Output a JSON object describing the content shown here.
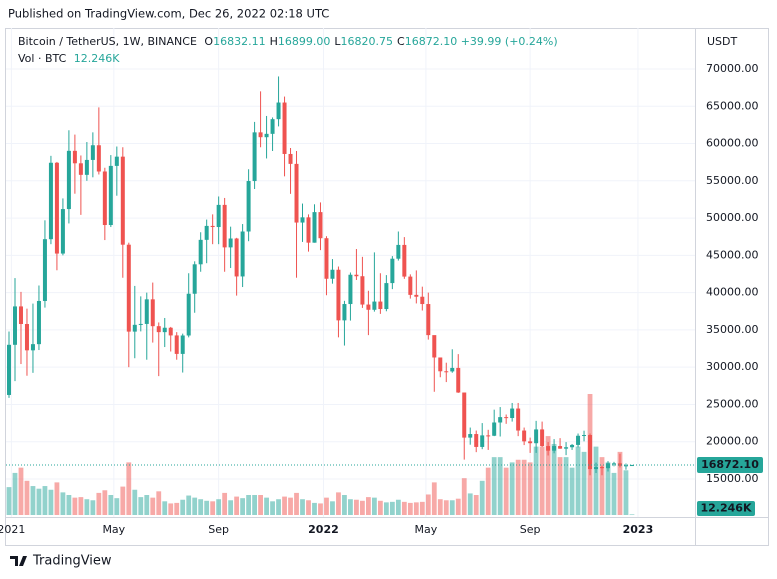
{
  "header": {
    "published": "Published on TradingView.com, Dec 26, 2022 02:18 UTC",
    "brand": "TradingView"
  },
  "chart_data": {
    "type": "candlestick",
    "symbol": "Bitcoin / TetherUS, 1W, BINANCE",
    "ohlc_legend": [
      {
        "name": "O",
        "value": 16832.11,
        "label": "16832.11"
      },
      {
        "name": "H",
        "value": 16899.0,
        "label": "16899.00"
      },
      {
        "name": "L",
        "value": 16820.75,
        "label": "16820.75"
      },
      {
        "name": "C",
        "value": 16872.1,
        "label": "16872.10"
      }
    ],
    "change": {
      "value": 39.99,
      "label": "+39.99"
    },
    "change_pct": {
      "value": 0.24,
      "label": "(+0.24%)"
    },
    "volume_title": "Vol · BTC",
    "y_unit": "USDT",
    "last_price": {
      "value": 16872.1,
      "label": "16872.10"
    },
    "last_volume": {
      "value": 12.246,
      "label": "12.246K"
    },
    "up_color": "#26a69a",
    "down_color": "#ef5350",
    "grid": true,
    "ylim": [
      10170,
      75230
    ],
    "yticks": [
      {
        "value": 15000,
        "label": "15000.00"
      },
      {
        "value": 20000,
        "label": "20000.00"
      },
      {
        "value": 25000,
        "label": "25000.00"
      },
      {
        "value": 30000,
        "label": "30000.00"
      },
      {
        "value": 35000,
        "label": "35000.00"
      },
      {
        "value": 40000,
        "label": "40000.00"
      },
      {
        "value": 45000,
        "label": "45000.00"
      },
      {
        "value": 50000,
        "label": "50000.00"
      },
      {
        "value": 55000,
        "label": "55000.00"
      },
      {
        "value": 60000,
        "label": "60000.00"
      },
      {
        "value": 65000,
        "label": "65000.00"
      },
      {
        "value": 70000,
        "label": "70000.00"
      }
    ],
    "xticks": [
      "2021",
      "May",
      "Sep",
      "2022",
      "May",
      "Sep",
      "2023"
    ],
    "candles": [
      [
        26272,
        34778,
        25880,
        33000,
        530
      ],
      [
        33000,
        41950,
        28130,
        38150,
        800
      ],
      [
        38150,
        40100,
        30420,
        35790,
        900
      ],
      [
        35790,
        37850,
        28850,
        32260,
        650
      ],
      [
        32260,
        38530,
        29240,
        33090,
        550
      ],
      [
        33090,
        40955,
        32300,
        38880,
        500
      ],
      [
        38880,
        49700,
        37990,
        47170,
        550
      ],
      [
        47170,
        58350,
        46500,
        57420,
        480
      ],
      [
        57420,
        57530,
        43000,
        45240,
        620
      ],
      [
        45240,
        52640,
        45000,
        51210,
        430
      ],
      [
        51210,
        61780,
        49280,
        59020,
        380
      ],
      [
        59020,
        61200,
        53270,
        57350,
        330
      ],
      [
        57350,
        58400,
        50430,
        55800,
        340
      ],
      [
        55800,
        60200,
        55000,
        57800,
        300
      ],
      [
        57800,
        61500,
        55470,
        59770,
        280
      ],
      [
        59770,
        64850,
        55850,
        56250,
        420
      ],
      [
        56250,
        56750,
        47050,
        49070,
        470
      ],
      [
        49070,
        58450,
        48800,
        57000,
        380
      ],
      [
        57000,
        59600,
        53000,
        58240,
        320
      ],
      [
        58240,
        59500,
        42000,
        46430,
        540
      ],
      [
        46430,
        46700,
        30000,
        34770,
        1000
      ],
      [
        34770,
        40900,
        31200,
        35680,
        480
      ],
      [
        35680,
        39500,
        34800,
        35800,
        340
      ],
      [
        35800,
        40000,
        31000,
        39100,
        380
      ],
      [
        39100,
        41350,
        33300,
        35500,
        330
      ],
      [
        35500,
        36000,
        28800,
        34700,
        450
      ],
      [
        34700,
        36600,
        32700,
        35290,
        260
      ],
      [
        35290,
        35400,
        32100,
        34260,
        220
      ],
      [
        34260,
        34700,
        31000,
        31780,
        230
      ],
      [
        31780,
        34500,
        29280,
        34250,
        290
      ],
      [
        34250,
        42600,
        34000,
        39850,
        370
      ],
      [
        39850,
        44200,
        37300,
        43800,
        330
      ],
      [
        43800,
        48100,
        42800,
        47080,
        300
      ],
      [
        47080,
        49800,
        43950,
        48950,
        270
      ],
      [
        48950,
        50500,
        46500,
        48800,
        260
      ],
      [
        48800,
        52900,
        46500,
        51770,
        300
      ],
      [
        51770,
        52700,
        42800,
        46070,
        420
      ],
      [
        46070,
        48850,
        43300,
        47260,
        280
      ],
      [
        47260,
        47350,
        39600,
        42170,
        350
      ],
      [
        42170,
        49200,
        40750,
        48200,
        320
      ],
      [
        48200,
        56550,
        46900,
        54970,
        380
      ],
      [
        54970,
        62900,
        53900,
        61500,
        380
      ],
      [
        61500,
        67000,
        59500,
        60850,
        380
      ],
      [
        60850,
        63700,
        58000,
        61300,
        330
      ],
      [
        61300,
        63500,
        59000,
        63270,
        260
      ],
      [
        63270,
        69000,
        62300,
        65500,
        300
      ],
      [
        65500,
        66300,
        55600,
        58600,
        350
      ],
      [
        58600,
        59400,
        53250,
        57270,
        330
      ],
      [
        57270,
        59000,
        42000,
        49400,
        420
      ],
      [
        49400,
        51950,
        46800,
        50100,
        300
      ],
      [
        50100,
        50500,
        45500,
        46700,
        280
      ],
      [
        46700,
        51850,
        46700,
        50800,
        230
      ],
      [
        50800,
        52100,
        45700,
        47300,
        220
      ],
      [
        47300,
        47570,
        39650,
        41860,
        330
      ],
      [
        41860,
        44500,
        41200,
        43070,
        260
      ],
      [
        43070,
        43500,
        34000,
        36280,
        430
      ],
      [
        36280,
        38900,
        32900,
        38470,
        380
      ],
      [
        38470,
        42700,
        36250,
        42400,
        300
      ],
      [
        42400,
        45850,
        41700,
        42200,
        290
      ],
      [
        42200,
        44800,
        37950,
        38400,
        270
      ],
      [
        38400,
        40250,
        34300,
        37700,
        340
      ],
      [
        37700,
        45400,
        37450,
        38800,
        330
      ],
      [
        38800,
        42600,
        37150,
        37800,
        270
      ],
      [
        37800,
        42350,
        37500,
        41280,
        240
      ],
      [
        41280,
        44900,
        40470,
        44550,
        250
      ],
      [
        44550,
        48200,
        44300,
        46400,
        290
      ],
      [
        46400,
        47450,
        41850,
        42150,
        250
      ],
      [
        42150,
        42450,
        39200,
        39700,
        230
      ],
      [
        39700,
        42980,
        38550,
        39450,
        240
      ],
      [
        39450,
        40800,
        37600,
        38470,
        250
      ],
      [
        38470,
        40000,
        33700,
        34300,
        390
      ],
      [
        34300,
        34250,
        26700,
        31300,
        620
      ],
      [
        31300,
        31300,
        28650,
        29450,
        300
      ],
      [
        29450,
        30600,
        28000,
        29430,
        280
      ],
      [
        29430,
        32400,
        29250,
        29900,
        280
      ],
      [
        29900,
        31750,
        26550,
        26600,
        310
      ],
      [
        26600,
        26600,
        17600,
        20550,
        700
      ],
      [
        20550,
        21900,
        19600,
        21030,
        410
      ],
      [
        21030,
        21500,
        18600,
        19300,
        380
      ],
      [
        19300,
        22500,
        19000,
        20850,
        650
      ],
      [
        20850,
        21600,
        18900,
        20800,
        900
      ],
      [
        20800,
        24300,
        20750,
        22580,
        1100
      ],
      [
        22580,
        24650,
        20700,
        23300,
        1100
      ],
      [
        23300,
        23650,
        22400,
        23180,
        900
      ],
      [
        23180,
        25200,
        22700,
        24450,
        1000
      ],
      [
        24450,
        25200,
        20750,
        21500,
        1050
      ],
      [
        21500,
        21900,
        19550,
        20050,
        1050
      ],
      [
        20050,
        20550,
        18500,
        19800,
        1000
      ],
      [
        19800,
        22800,
        18500,
        21650,
        1300
      ],
      [
        21650,
        22700,
        19300,
        19420,
        1300
      ],
      [
        19420,
        19950,
        18150,
        18800,
        1500
      ],
      [
        18800,
        20350,
        18450,
        19420,
        1350
      ],
      [
        19420,
        20480,
        19050,
        19070,
        1100
      ],
      [
        19070,
        19950,
        18200,
        19260,
        1100
      ],
      [
        19260,
        19700,
        18900,
        19570,
        900
      ],
      [
        19570,
        21100,
        19250,
        20800,
        1300
      ],
      [
        20800,
        21480,
        20050,
        20900,
        1200
      ],
      [
        20900,
        21100,
        15500,
        16330,
        2300
      ],
      [
        16330,
        17200,
        15800,
        16600,
        1300
      ],
      [
        16600,
        16800,
        15500,
        16450,
        1100
      ],
      [
        16450,
        17400,
        16000,
        17100,
        1000
      ],
      [
        17100,
        17300,
        16700,
        17100,
        800
      ],
      [
        17100,
        18400,
        16550,
        16770,
        1200
      ],
      [
        16770,
        17080,
        16250,
        16832,
        850
      ],
      [
        16832.11,
        16899.0,
        16820.75,
        16872.1,
        12.246
      ]
    ]
  }
}
